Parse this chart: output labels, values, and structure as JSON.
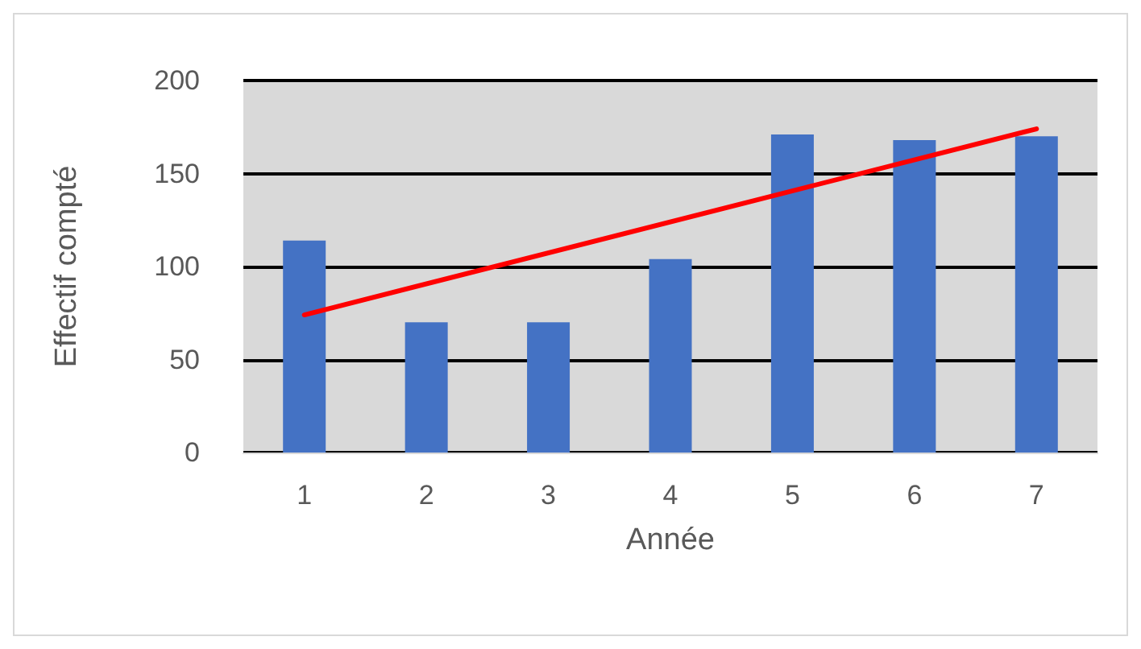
{
  "chart_data": {
    "type": "bar",
    "xlabel": "Année",
    "ylabel": "Effectif compté",
    "categories": [
      "1",
      "2",
      "3",
      "4",
      "5",
      "6",
      "7"
    ],
    "series": [
      {
        "color": "#4472c4",
        "values": [
          114,
          70,
          70,
          104,
          171,
          168,
          170
        ]
      },
      {
        "type": "line",
        "color": "#ff0000",
        "x": [
          "1",
          "7"
        ],
        "values": [
          74,
          174
        ],
        "marker": "none",
        "line_style": "solid"
      }
    ],
    "ylim": [
      0,
      200
    ],
    "yticks": [
      0,
      50,
      100,
      150,
      200
    ],
    "grid": "y"
  }
}
